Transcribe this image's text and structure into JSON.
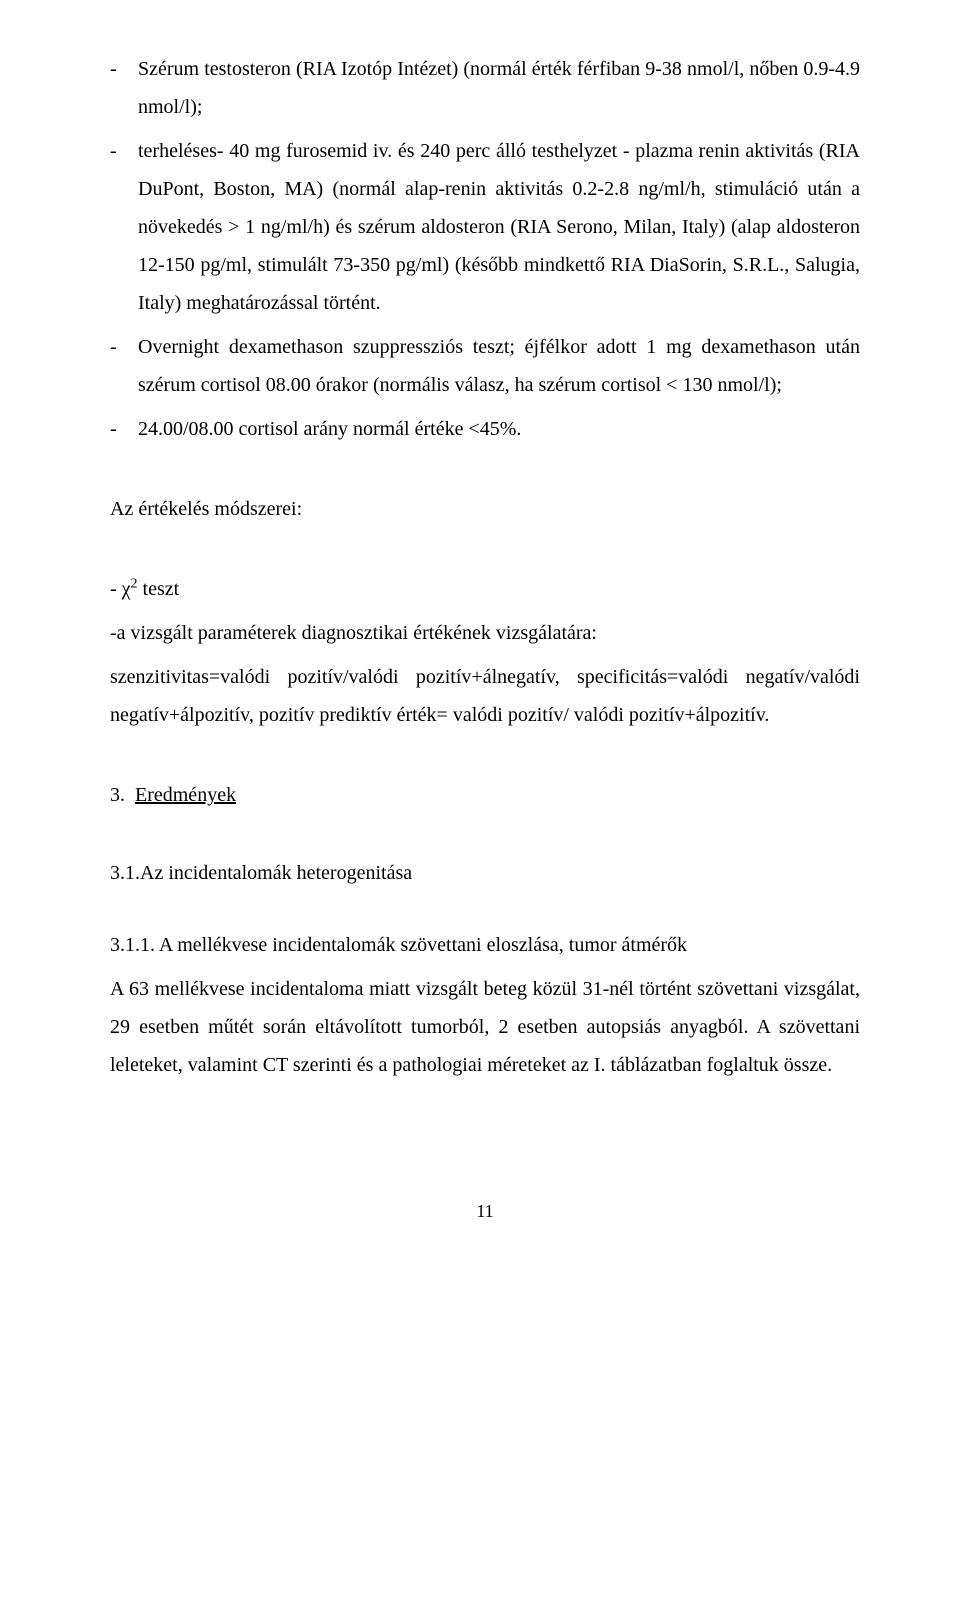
{
  "list": {
    "item1": {
      "dash": "-",
      "text": "Szérum testosteron (RIA Izotóp Intézet) (normál érték férfiban 9-38 nmol/l, nőben 0.9-4.9 nmol/l);"
    },
    "item2": {
      "dash": "-",
      "text": "terheléses- 40 mg furosemid iv. és 240 perc álló testhelyzet - plazma renin aktivitás (RIA DuPont, Boston, MA) (normál alap-renin aktivitás 0.2-2.8 ng/ml/h, stimuláció után a növekedés > 1 ng/ml/h) és szérum aldosteron (RIA Serono, Milan, Italy) (alap aldosteron 12-150 pg/ml, stimulált 73-350 pg/ml) (később mindkettő RIA DiaSorin, S.R.L., Salugia, Italy) meghatározással történt."
    },
    "item3": {
      "dash": "-",
      "text": "Overnight dexamethason szuppressziós teszt; éjfélkor adott 1 mg dexamethason után szérum cortisol 08.00 órakor (normális válasz, ha szérum cortisol <  130 nmol/l);"
    },
    "item4": {
      "dash": "-",
      "text": "24.00/08.00 cortisol arány normál értéke <45%."
    }
  },
  "methods_heading": "Az értékelés módszerei:",
  "chi_line_prefix": "- χ",
  "chi_line_suffix": " teszt",
  "param_line": "-a vizsgált paraméterek diagnosztikai értékének vizsgálatára:",
  "sens_line": "szenzitivitas=valódi pozitív/valódi pozitív+álnegatív, specificitás=valódi negatív/valódi negatív+álpozitív, pozitív prediktív érték= valódi pozitív/ valódi pozitív+álpozitív.",
  "sec3_num": "3.",
  "sec3_title": "Eredmények",
  "sec31": "3.1.Az incidentalomák heterogenitása",
  "sec311_title": "3.1.1. A mellékvese incidentalomák szövettani eloszlása, tumor átmérők",
  "sec311_body": "A 63 mellékvese incidentaloma miatt vizsgált beteg közül 31-nél történt szövettani vizsgálat, 29 esetben műtét során eltávolított tumorból, 2 esetben autopsiás anyagból. A szövettani leleteket, valamint CT szerinti és a pathologiai méreteket az I. táblázatban foglaltuk össze.",
  "page_number": "11",
  "chi_sup": "2"
}
